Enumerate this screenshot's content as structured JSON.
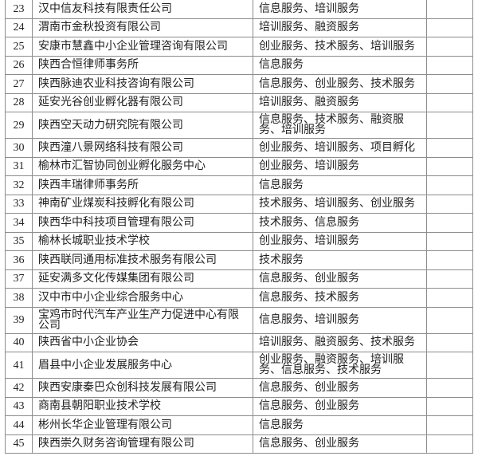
{
  "rows": [
    {
      "no": "23",
      "name": "汉中信友科技有限责任公司",
      "services": "信息服务、培训服务",
      "note": ""
    },
    {
      "no": "24",
      "name": "渭南市金秋投资有限公司",
      "services": "培训服务、融资服务",
      "note": ""
    },
    {
      "no": "25",
      "name": "安康市慧鑫中小企业管理咨询有限公司",
      "services": "创业服务、技术服务、培训服务",
      "note": ""
    },
    {
      "no": "26",
      "name": "陕西合恒律师事务所",
      "services": "信息服务",
      "note": ""
    },
    {
      "no": "27",
      "name": "陕西脉迪农业科技咨询有限公司",
      "services": "信息服务、创业服务、技术服务",
      "note": ""
    },
    {
      "no": "28",
      "name": "延安光谷创业孵化器有限公司",
      "services": "培训服务、融资服务",
      "note": ""
    },
    {
      "no": "29",
      "name": "陕西空天动力研究院有限公司",
      "services": "信息服务、技术服务、融资服务、培训服务",
      "note": "",
      "tall": true
    },
    {
      "no": "30",
      "name": "陕西潼八景网络科技有限公司",
      "services": "创业服务、培训服务、项目孵化",
      "note": ""
    },
    {
      "no": "31",
      "name": "榆林市汇智协同创业孵化服务中心",
      "services": "创业服务、培训服务",
      "note": ""
    },
    {
      "no": "32",
      "name": "陕西丰瑞律师事务所",
      "services": "信息服务",
      "note": ""
    },
    {
      "no": "33",
      "name": "神南矿业煤炭科技孵化有限公司",
      "services": "技术服务、培训服务、创业服务",
      "note": ""
    },
    {
      "no": "34",
      "name": "陕西华中科技项目管理有限公司",
      "services": "技术服务、信息服务",
      "note": ""
    },
    {
      "no": "35",
      "name": "榆林长城职业技术学校",
      "services": "创业服务、培训服务",
      "note": ""
    },
    {
      "no": "36",
      "name": "陕西联同通用标准技术服务有限公司",
      "services": "技术服务",
      "note": ""
    },
    {
      "no": "37",
      "name": "延安满多文化传媒集团有限公司",
      "services": "信息服务、创业服务",
      "note": ""
    },
    {
      "no": "38",
      "name": "汉中市中小企业综合服务中心",
      "services": "信息服务、技术服务",
      "note": ""
    },
    {
      "no": "39",
      "name": "宝鸡市时代汽车产业生产力促进中心有限公司",
      "services": "信息服务、培训服务",
      "note": "",
      "tall": true
    },
    {
      "no": "40",
      "name": "陕西省中小企业协会",
      "services": "培训服务、融资服务、技术服务",
      "note": ""
    },
    {
      "no": "41",
      "name": "眉县中小企业发展服务中心",
      "services": "创业服务、融资服务、培训服务、信息服务、技术服务",
      "note": "",
      "tall": true
    },
    {
      "no": "42",
      "name": "陕西安康秦巴众创科技发展有限公司",
      "services": "信息服务、创业服务",
      "note": ""
    },
    {
      "no": "43",
      "name": "商南县朝阳职业技术学校",
      "services": "信息服务、创业服务",
      "note": ""
    },
    {
      "no": "44",
      "name": "彬州长华企业管理有限公司",
      "services": "信息服务",
      "note": ""
    },
    {
      "no": "45",
      "name": "陕西崇久财务咨询管理有限公司",
      "services": "信息服务、创业服务",
      "note": ""
    }
  ]
}
